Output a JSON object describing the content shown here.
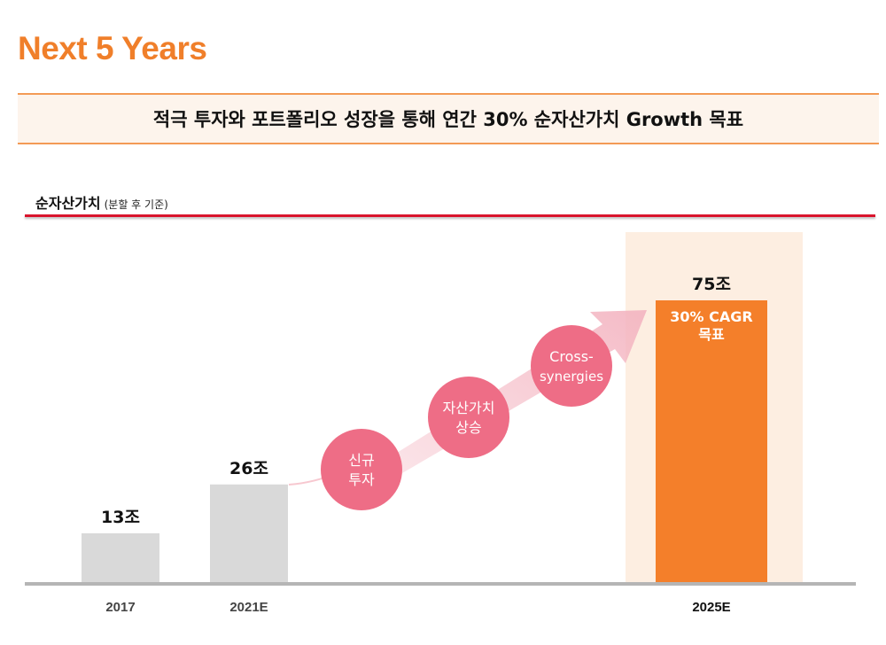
{
  "header": {
    "title": "Next 5 Years",
    "banner": "적극 투자와 포트폴리오 성장을 통해 연간 30% 순자산가치 Growth 목표"
  },
  "section": {
    "label": "순자산가치",
    "sublabel": "(분할 후 기준)"
  },
  "colors": {
    "accent": "#f07f2a",
    "bar_actual": "#d9d9d9",
    "bar_target": "#f47f2a",
    "highlight": "#fdeee1",
    "circle": "#ee6d86",
    "arrow": "#f7c8d0",
    "rule": "#d9142d"
  },
  "chart_data": {
    "type": "bar",
    "title": "",
    "xlabel": "",
    "ylabel": "",
    "categories": [
      "2017",
      "2021E",
      "2025E"
    ],
    "values": [
      13,
      26,
      75
    ],
    "value_labels": [
      "13조",
      "26조",
      "75조"
    ],
    "unit": "조",
    "ylim": [
      0,
      80
    ],
    "grid": false,
    "bar_annotation": [
      "30% CAGR",
      "목표"
    ],
    "drivers": [
      [
        "신규",
        "투자"
      ],
      [
        "자산가치",
        "상승"
      ],
      [
        "Cross-",
        "synergies"
      ]
    ]
  }
}
